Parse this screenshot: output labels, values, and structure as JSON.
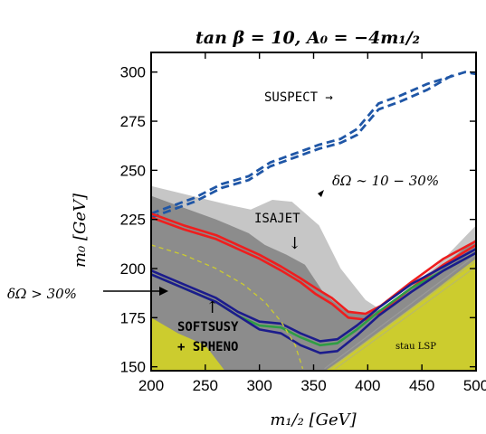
{
  "chart_data": {
    "type": "line",
    "title": "tan β = 10,  A₀ = −4m₁/₂",
    "xlabel": "m₁/₂ [GeV]",
    "ylabel": "m₀ [GeV]",
    "xlim": [
      200,
      500
    ],
    "ylim": [
      148,
      310
    ],
    "xticks": [
      200,
      250,
      300,
      350,
      400,
      450,
      500
    ],
    "yticks": [
      150,
      175,
      200,
      225,
      250,
      275,
      300
    ],
    "grid": false,
    "colors": {
      "region_light": "#c6c6c6",
      "region_dark": "#8c8c8c",
      "stau_lsp": "#cccc2e",
      "suspect": "#1f56a6",
      "isajet": "#ee1e1e",
      "softsusy": "#1c1c8c",
      "green": "#2f9d44"
    },
    "regions": [
      {
        "name": "light",
        "label": "δΩ ∼ 10 − 30%",
        "polygon": [
          [
            200,
            242
          ],
          [
            275,
            232
          ],
          [
            292,
            230
          ],
          [
            312,
            235
          ],
          [
            330,
            234
          ],
          [
            355,
            222
          ],
          [
            375,
            200
          ],
          [
            398,
            184
          ],
          [
            412,
            179
          ],
          [
            465,
            202
          ],
          [
            500,
            222
          ],
          [
            500,
            148
          ],
          [
            200,
            148
          ]
        ]
      },
      {
        "name": "dark",
        "label": "δΩ > 30%",
        "polygon": [
          [
            200,
            237
          ],
          [
            230,
            231
          ],
          [
            260,
            225
          ],
          [
            290,
            218
          ],
          [
            305,
            212
          ],
          [
            325,
            207
          ],
          [
            342,
            202
          ],
          [
            360,
            187
          ],
          [
            378,
            179
          ],
          [
            398,
            177
          ],
          [
            412,
            179
          ],
          [
            450,
            193
          ],
          [
            500,
            215
          ],
          [
            500,
            148
          ],
          [
            200,
            148
          ]
        ]
      },
      {
        "name": "stau",
        "label": "stau LSP",
        "polygon": [
          [
            361,
            148
          ],
          [
            405,
            165
          ],
          [
            500,
            205
          ],
          [
            500,
            148
          ]
        ]
      },
      {
        "name": "stau-left",
        "label": "",
        "polygon": [
          [
            200,
            175
          ],
          [
            225,
            167
          ],
          [
            250,
            161
          ],
          [
            268,
            148
          ],
          [
            200,
            148
          ]
        ]
      }
    ],
    "series": [
      {
        "name": "SUSPECT →",
        "style": "dashed",
        "color_key": "suspect",
        "points": [
          [
            200,
            226
          ],
          [
            240,
            234
          ],
          [
            265,
            241
          ],
          [
            290,
            245
          ],
          [
            310,
            252
          ],
          [
            330,
            256
          ],
          [
            355,
            261
          ],
          [
            375,
            264
          ],
          [
            390,
            268
          ],
          [
            410,
            281
          ],
          [
            430,
            285
          ],
          [
            455,
            291
          ],
          [
            480,
            299
          ]
        ]
      },
      {
        "name": "SUSPECT-2",
        "style": "dashed",
        "color_key": "suspect",
        "points": [
          [
            200,
            228
          ],
          [
            240,
            236
          ],
          [
            265,
            243
          ],
          [
            290,
            247
          ],
          [
            310,
            254
          ],
          [
            330,
            258
          ],
          [
            355,
            263
          ],
          [
            375,
            266
          ],
          [
            390,
            271
          ],
          [
            410,
            284
          ],
          [
            430,
            288
          ],
          [
            455,
            294
          ],
          [
            490,
            300
          ],
          [
            500,
            299
          ]
        ]
      },
      {
        "name": "ISAJET",
        "style": "solid",
        "color_key": "isajet",
        "points": [
          [
            200,
            226
          ],
          [
            230,
            220
          ],
          [
            260,
            215
          ],
          [
            280,
            210
          ],
          [
            300,
            205
          ],
          [
            320,
            199
          ],
          [
            338,
            193
          ],
          [
            352,
            187
          ],
          [
            367,
            182
          ],
          [
            382,
            175
          ],
          [
            398,
            174
          ],
          [
            412,
            178
          ],
          [
            440,
            190
          ],
          [
            470,
            202
          ],
          [
            500,
            212
          ]
        ]
      },
      {
        "name": "ISAJET-2",
        "style": "solid",
        "color_key": "isajet",
        "points": [
          [
            200,
            228
          ],
          [
            230,
            222
          ],
          [
            260,
            217
          ],
          [
            280,
            212
          ],
          [
            300,
            207
          ],
          [
            320,
            201
          ],
          [
            338,
            195
          ],
          [
            352,
            190
          ],
          [
            367,
            185
          ],
          [
            382,
            178
          ],
          [
            398,
            177
          ],
          [
            412,
            181
          ],
          [
            440,
            193
          ],
          [
            470,
            205
          ],
          [
            500,
            214
          ]
        ]
      },
      {
        "name": "GREEN",
        "style": "solid",
        "color_key": "green",
        "points": [
          [
            200,
            197
          ],
          [
            230,
            190
          ],
          [
            260,
            183
          ],
          [
            280,
            176
          ],
          [
            300,
            171
          ],
          [
            320,
            170
          ],
          [
            338,
            165
          ],
          [
            356,
            161
          ],
          [
            372,
            162
          ],
          [
            390,
            169
          ],
          [
            410,
            178
          ],
          [
            440,
            190
          ],
          [
            470,
            199
          ],
          [
            500,
            208
          ]
        ]
      },
      {
        "name": "SOFTSUSY",
        "style": "solid",
        "color_key": "softsusy",
        "points": [
          [
            200,
            199
          ],
          [
            230,
            192
          ],
          [
            260,
            185
          ],
          [
            280,
            178
          ],
          [
            300,
            173
          ],
          [
            320,
            172
          ],
          [
            338,
            167
          ],
          [
            356,
            163
          ],
          [
            372,
            164
          ],
          [
            390,
            171
          ],
          [
            410,
            180
          ],
          [
            440,
            192
          ],
          [
            470,
            201
          ],
          [
            500,
            210
          ]
        ]
      },
      {
        "name": "SPHENO",
        "style": "solid",
        "color_key": "softsusy",
        "points": [
          [
            200,
            197
          ],
          [
            230,
            190
          ],
          [
            260,
            183
          ],
          [
            280,
            176
          ],
          [
            300,
            169
          ],
          [
            320,
            167
          ],
          [
            338,
            161
          ],
          [
            356,
            157
          ],
          [
            372,
            158
          ],
          [
            390,
            166
          ],
          [
            410,
            176
          ],
          [
            440,
            188
          ],
          [
            470,
            199
          ],
          [
            500,
            208
          ]
        ]
      },
      {
        "name": "YELLOW-DASH",
        "style": "dashed",
        "color_key": "stau_lsp",
        "points": [
          [
            200,
            212
          ],
          [
            230,
            207
          ],
          [
            260,
            200
          ],
          [
            285,
            192
          ],
          [
            305,
            183
          ],
          [
            320,
            173
          ],
          [
            333,
            161
          ],
          [
            340,
            149
          ]
        ]
      }
    ],
    "annotations": {
      "suspect": "SUSPECT →",
      "isajet": "ISAJET",
      "isajet_arrow": "↓",
      "softsusy_arrow": "↑",
      "softsusy_1": "SOFTSUSY",
      "softsusy_2": "+ SPHENO",
      "delta_light": "δΩ ∼ 10 − 30%",
      "delta_dark": "δΩ > 30%",
      "stau": "stau LSP"
    }
  }
}
